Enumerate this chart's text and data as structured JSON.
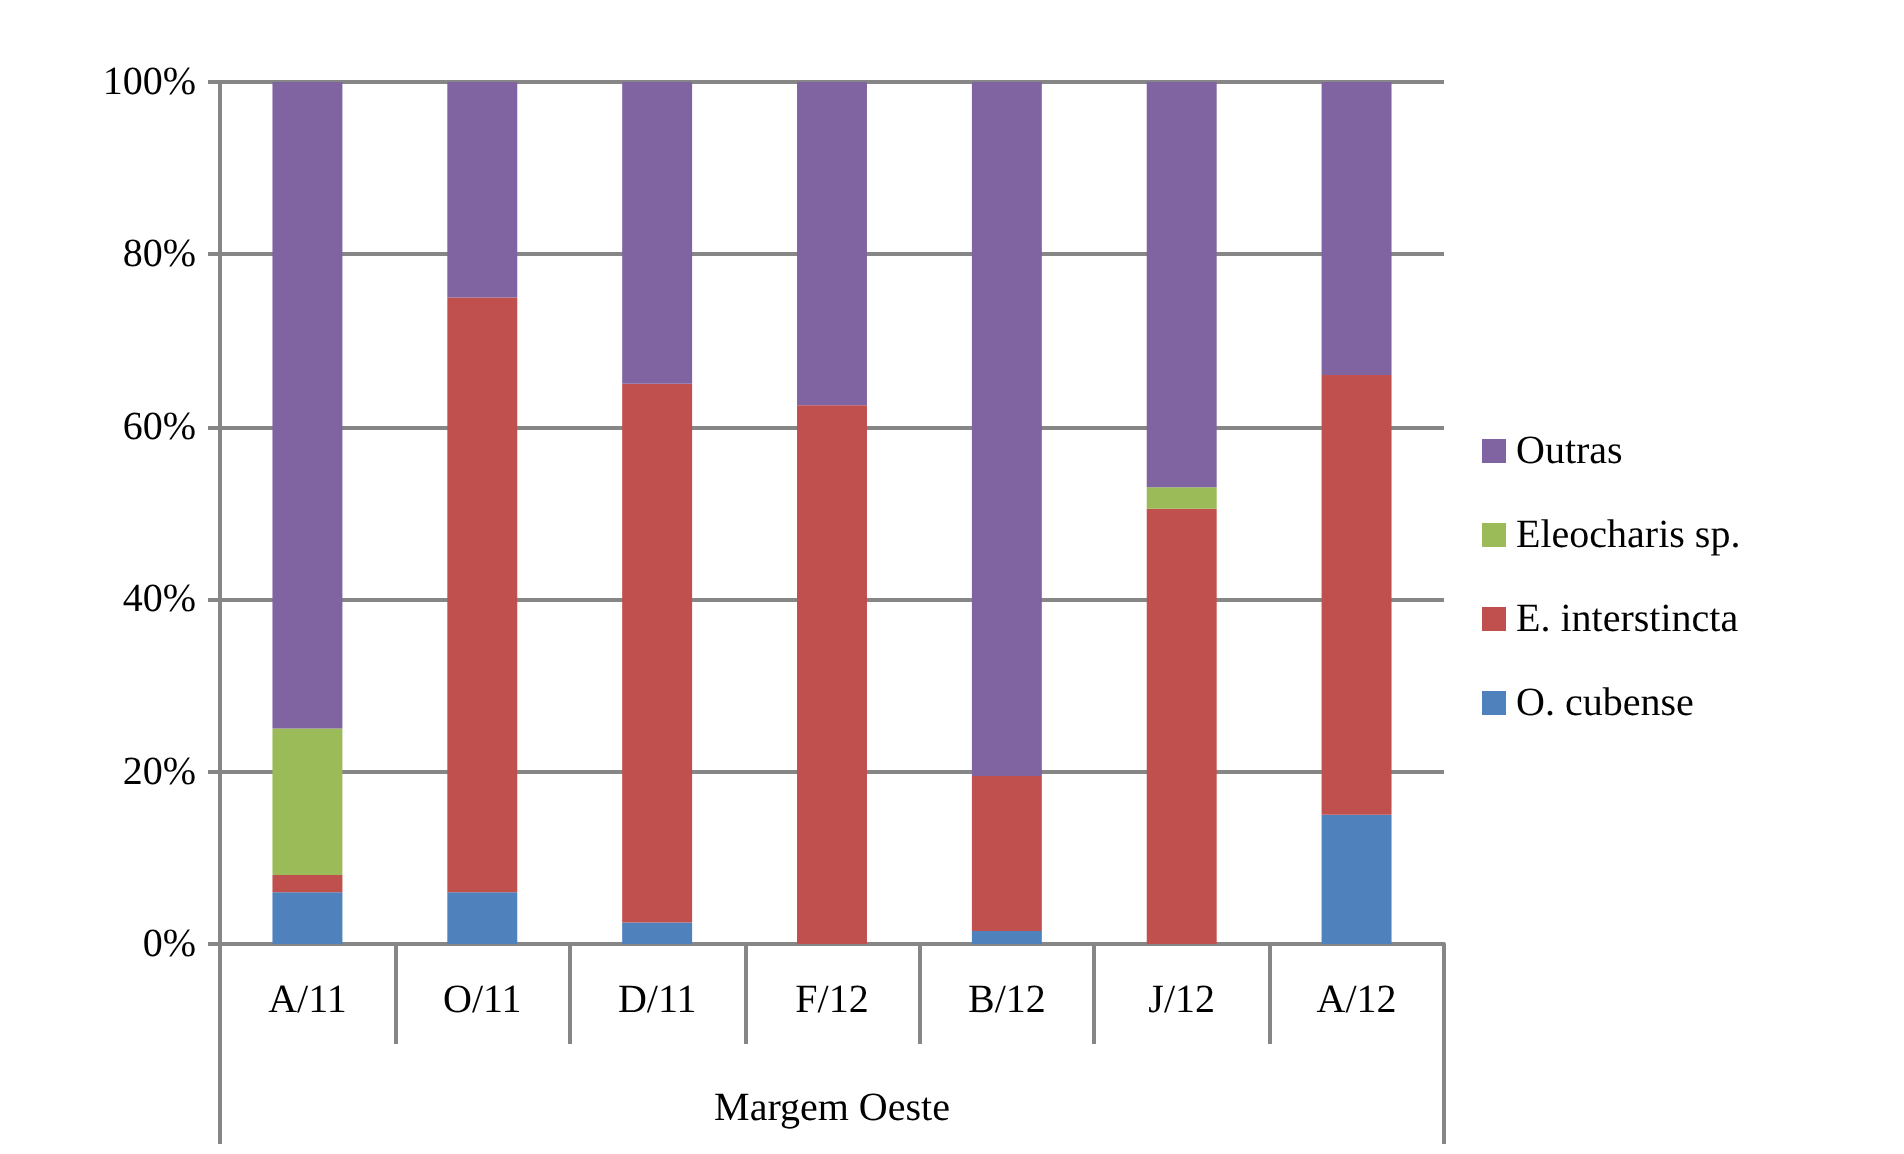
{
  "chart_data": {
    "type": "bar",
    "stacked": true,
    "categories": [
      "A/11",
      "O/11",
      "D/11",
      "F/12",
      "B/12",
      "J/12",
      "A/12"
    ],
    "xlabel": "Margem Oeste",
    "series": [
      {
        "name": "O. cubense",
        "color": "#4f81bd",
        "values": [
          6,
          6,
          2.5,
          0,
          1.5,
          0,
          15
        ]
      },
      {
        "name": "E. interstincta",
        "color": "#c0504d",
        "values": [
          2,
          69,
          62.5,
          62.5,
          18,
          50.5,
          51
        ]
      },
      {
        "name": "Eleocharis sp.",
        "color": "#9bbb59",
        "values": [
          17,
          0,
          0,
          0,
          0,
          2.5,
          0
        ]
      },
      {
        "name": "Outras",
        "color": "#8064a2",
        "values": [
          75,
          25,
          35,
          37.5,
          80.5,
          47,
          34
        ]
      }
    ],
    "ylim": [
      0,
      100
    ],
    "yticks": [
      {
        "value": 0,
        "label": "0%"
      },
      {
        "value": 20,
        "label": "20%"
      },
      {
        "value": 40,
        "label": "40%"
      },
      {
        "value": 60,
        "label": "60%"
      },
      {
        "value": 80,
        "label": "80%"
      },
      {
        "value": 100,
        "label": "100%"
      }
    ],
    "grid": "y",
    "legend": "right"
  }
}
